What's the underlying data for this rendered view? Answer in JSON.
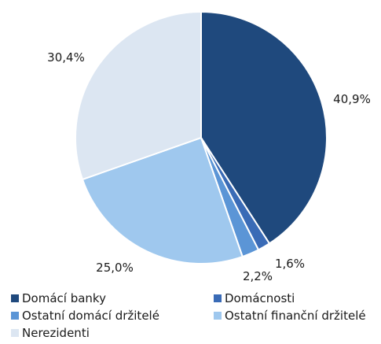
{
  "chart_data": {
    "type": "pie",
    "start_angle_deg": 0,
    "direction": "clockwise",
    "slices": [
      {
        "label": "Domácí banky",
        "value": 40.9,
        "value_label": "40,9%",
        "color": "#1f497d"
      },
      {
        "label": "Domácnosti",
        "value": 1.6,
        "value_label": "1,6%",
        "color": "#3a6bb6"
      },
      {
        "label": "Ostatní domácí držitelé",
        "value": 2.2,
        "value_label": "2,2%",
        "color": "#5b95d6"
      },
      {
        "label": "Ostatní finanční držitelé",
        "value": 25.0,
        "value_label": "25,0%",
        "color": "#9fc8ee"
      },
      {
        "label": "Nerezidenti",
        "value": 30.4,
        "value_label": "30,4%",
        "color": "#dce6f2"
      }
    ],
    "legend_position": "bottom"
  }
}
